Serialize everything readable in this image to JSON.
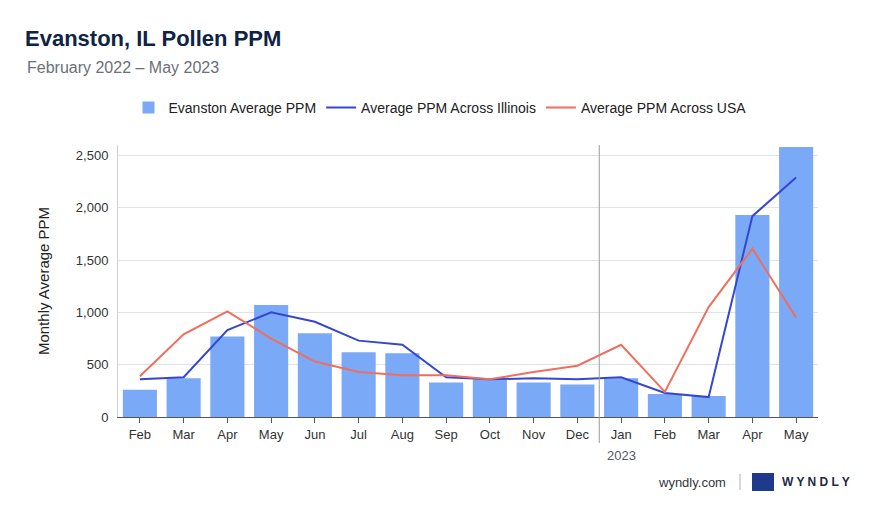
{
  "chart_data": {
    "type": "bar",
    "title": "Evanston, IL Pollen PPM",
    "subtitle": "February 2022 – May 2023",
    "y_label": "Monthly Average PPM",
    "categories": [
      "Feb",
      "Mar",
      "Apr",
      "May",
      "Jun",
      "Jul",
      "Aug",
      "Sep",
      "Oct",
      "Nov",
      "Dec",
      "Jan",
      "Feb",
      "Mar",
      "Apr",
      "May"
    ],
    "series": [
      {
        "name": "Evanston Average PPM",
        "type": "bar",
        "color": "#7aa9f7",
        "values": [
          260,
          370,
          770,
          1070,
          800,
          620,
          610,
          330,
          360,
          330,
          310,
          370,
          220,
          200,
          1930,
          2580
        ]
      },
      {
        "name": "Average PPM Across Illinois",
        "type": "line",
        "color": "#3547d1",
        "values": [
          360,
          380,
          830,
          1000,
          910,
          730,
          690,
          380,
          360,
          370,
          360,
          380,
          230,
          190,
          1920,
          2290
        ]
      },
      {
        "name": "Average PPM Across USA",
        "type": "line",
        "color": "#ee6f5e",
        "values": [
          390,
          790,
          1010,
          750,
          530,
          430,
          400,
          400,
          360,
          430,
          490,
          690,
          240,
          1050,
          1610,
          950
        ]
      }
    ],
    "ylim": [
      0,
      2600
    ],
    "yticks": [
      0,
      500,
      {
        "value": 1000,
        "label": "1,000"
      },
      {
        "value": 1500,
        "label": "1,500"
      },
      {
        "value": 2000,
        "label": "2,000"
      },
      {
        "value": 2500,
        "label": "2,500"
      }
    ],
    "grid": true,
    "legend": "top",
    "annotations": [
      {
        "text": "2023",
        "category": "Jan"
      }
    ],
    "footer": [
      "wyndly.com",
      "WYNDLY"
    ]
  }
}
